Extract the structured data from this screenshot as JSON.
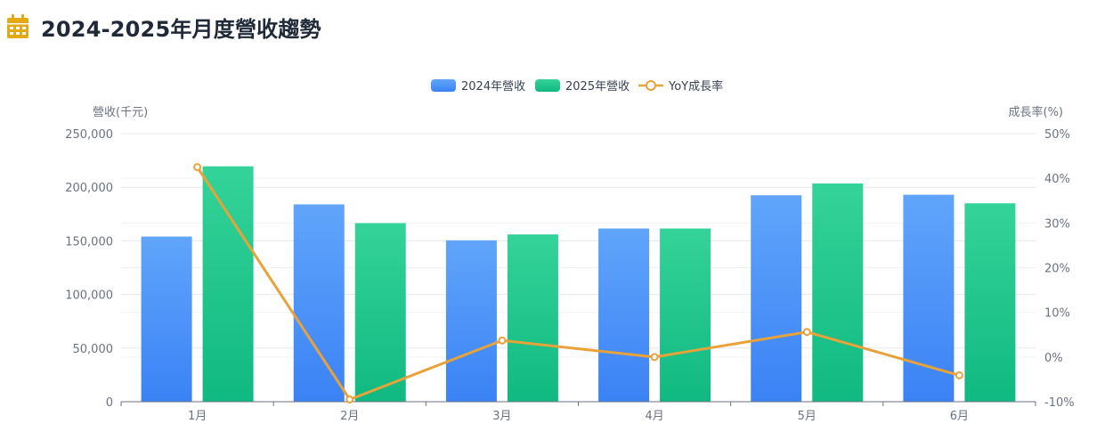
{
  "page": {
    "title": "2024-2025年月度營收趨勢",
    "title_icon": "calendar-icon"
  },
  "colors": {
    "bar2024_top": "#60a5fa",
    "bar2024_bottom": "#3b82f6",
    "bar2025_top": "#34d399",
    "bar2025_bottom": "#10b981",
    "yoy_line": "#e8a23a",
    "grid": "#e5e7eb",
    "icon": "#e3a916"
  },
  "chart_data": {
    "type": "bar",
    "categories": [
      "1月",
      "2月",
      "3月",
      "4月",
      "5月",
      "6月"
    ],
    "series": [
      {
        "name": "2024年營收",
        "type": "bar",
        "axis": "left",
        "values": [
          154000,
          184000,
          150500,
          161500,
          192500,
          193000
        ]
      },
      {
        "name": "2025年營收",
        "type": "bar",
        "axis": "left",
        "values": [
          219500,
          166500,
          156000,
          161500,
          203500,
          185000
        ]
      },
      {
        "name": "YoY成長率",
        "type": "line",
        "axis": "right",
        "values": [
          42.5,
          -9.5,
          3.7,
          0,
          5.6,
          -4.1
        ]
      }
    ],
    "ylabel_left": "營收(千元)",
    "ylabel_right": "成長率(%)",
    "ylim_left": [
      0,
      250000
    ],
    "ylim_right": [
      -10,
      50
    ],
    "yticks_left": [
      "0",
      "50,000",
      "100,000",
      "150,000",
      "200,000",
      "250,000"
    ],
    "yticks_right": [
      "-10%",
      "0%",
      "10%",
      "20%",
      "30%",
      "40%",
      "50%"
    ],
    "legend": [
      "2024年營收",
      "2025年營收",
      "YoY成長率"
    ],
    "legend_position": "top-center",
    "grid": true
  }
}
